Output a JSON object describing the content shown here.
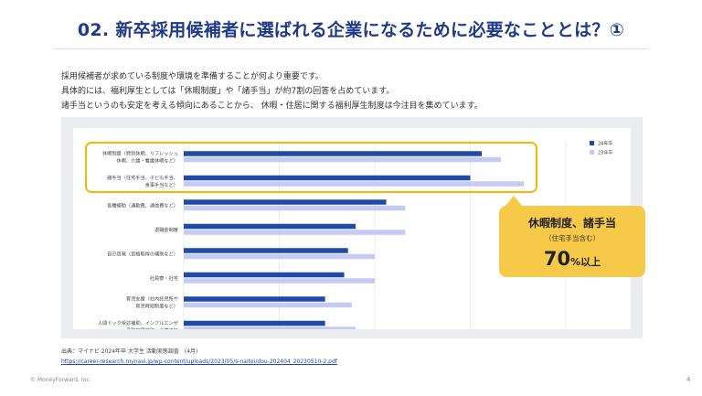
{
  "title": "02. 新卒採用候補者に選ばれる企業になるために必要なこととは？①",
  "intro": [
    "採用候補者が求めている制度や環境を準備することが何より重要です。",
    "具体的には、福利厚生としては「休暇制度」や「諸手当」が約7割の回答を占めています。",
    "諸手当というのも安定を考える傾向にあることから、 休暇・住居に関する福利厚生制度は今注目を集めています。"
  ],
  "callout": {
    "line1": "休暇制度、諸手当",
    "line2": "（住宅手当含む）",
    "value": "70",
    "unit": "%以上"
  },
  "source": {
    "label": "出典：マイナビ 2024年卒 大学生 活動実態調査　(4月)",
    "url": "https://career-research.mynavi.jp/wp-content/uploads/2023/05/s-naitei/dou-202404_20230510-2.pdf"
  },
  "footer": {
    "copyright": "© MoneyForward, Inc.",
    "page": "4"
  },
  "colors": {
    "title": "#1f3a8a",
    "series24": "#1f4aa8",
    "series23": "#c5caf5",
    "highlight": "#f5b800",
    "callout": "#f7c948"
  },
  "chart_data": {
    "type": "bar",
    "orientation": "horizontal",
    "categories": [
      [
        "休暇制度（特別休暇、リフレッシュ",
        "休暇、介護・看護休暇など）"
      ],
      [
        "諸手当（住宅手当、子ども手当、",
        "食事手当など）"
      ],
      [
        "各種補助（通勤費、通信費など）"
      ],
      [
        "退職金制度"
      ],
      [
        "自己啓発（資格取得の補助など）"
      ],
      [
        "社員寮・社宅"
      ],
      [
        "育児支援（社内託児所や",
        "育児時短制度など）"
      ],
      [
        "人間ドック受診補助、インフルエンザ",
        "予防接種補助、企業内診"
      ]
    ],
    "series": [
      {
        "name": "24年卒",
        "values": [
          78,
          75,
          53,
          45,
          43,
          42,
          37,
          37
        ]
      },
      {
        "name": "23年卒",
        "values": [
          83,
          89,
          58,
          58,
          50,
          50,
          44,
          45
        ]
      }
    ],
    "x_ticks": [
      0,
      25,
      50,
      75,
      100
    ],
    "xlim": [
      0,
      100
    ],
    "legend": "top-right",
    "highlighted_categories": [
      0,
      1
    ]
  }
}
